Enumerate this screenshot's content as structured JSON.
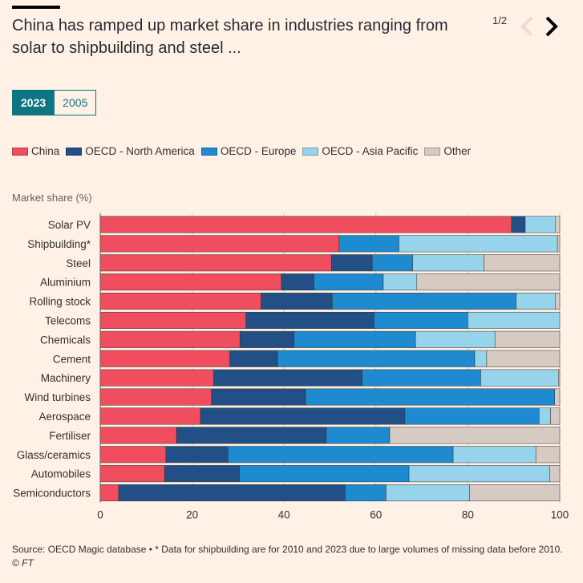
{
  "header": {
    "title": "China has ramped up market share in industries ranging from solar to shipbuilding and steel ...",
    "pager": "1/2"
  },
  "toggle": {
    "active": "2023",
    "inactive": "2005"
  },
  "colors": {
    "China": "#f04e5e",
    "OECD - North America": "#214f86",
    "OECD - Europe": "#1e8bd0",
    "OECD - Asia Pacific": "#97d3ea",
    "Other": "#d6cbc2"
  },
  "chart_data": {
    "type": "bar",
    "orientation": "horizontal",
    "stacked": true,
    "ylabel": "Market share (%)",
    "xlim": [
      0,
      100
    ],
    "xticks": [
      0,
      20,
      40,
      60,
      80,
      100
    ],
    "grid": true,
    "legend_position": "top",
    "categories": [
      "Solar PV",
      "Shipbuilding*",
      "Steel",
      "Aluminium",
      "Rolling stock",
      "Telecoms",
      "Chemicals",
      "Cement",
      "Machinery",
      "Wind turbines",
      "Aerospace",
      "Fertiliser",
      "Glass/ceramics",
      "Automobiles",
      "Semiconductors"
    ],
    "series": [
      {
        "name": "China",
        "values": [
          89.5,
          52,
          50.3,
          39.4,
          35,
          31.7,
          30.4,
          28.2,
          24.7,
          24.2,
          21.8,
          16.6,
          14.3,
          14,
          4
        ]
      },
      {
        "name": "OECD - North America",
        "values": [
          3,
          0,
          8.9,
          7.1,
          15.5,
          27.9,
          11.8,
          10.4,
          32.3,
          20.5,
          44.5,
          32.6,
          13.5,
          16.3,
          49.3
        ]
      },
      {
        "name": "OECD - Europe",
        "values": [
          0,
          13,
          8.8,
          15.1,
          40,
          20.4,
          26.4,
          42.9,
          25.8,
          54.2,
          29.2,
          13.8,
          49,
          36.9,
          8.9
        ]
      },
      {
        "name": "OECD - Asia Pacific",
        "values": [
          6.5,
          34.5,
          15.5,
          7.3,
          8.5,
          20,
          17.3,
          2.6,
          16.9,
          0,
          2.5,
          0,
          18,
          30.6,
          18.2
        ]
      },
      {
        "name": "Other",
        "values": [
          1,
          0.5,
          16.5,
          31.1,
          1,
          0,
          14.1,
          15.9,
          0.3,
          1.1,
          2,
          37,
          5.2,
          2.2,
          19.6
        ]
      }
    ]
  },
  "footer": {
    "source": "Source: OECD Magic database • * Data for shipbuilding are for 2010 and 2023 due to large volumes of missing data before 2010.",
    "credit": "© FT"
  }
}
